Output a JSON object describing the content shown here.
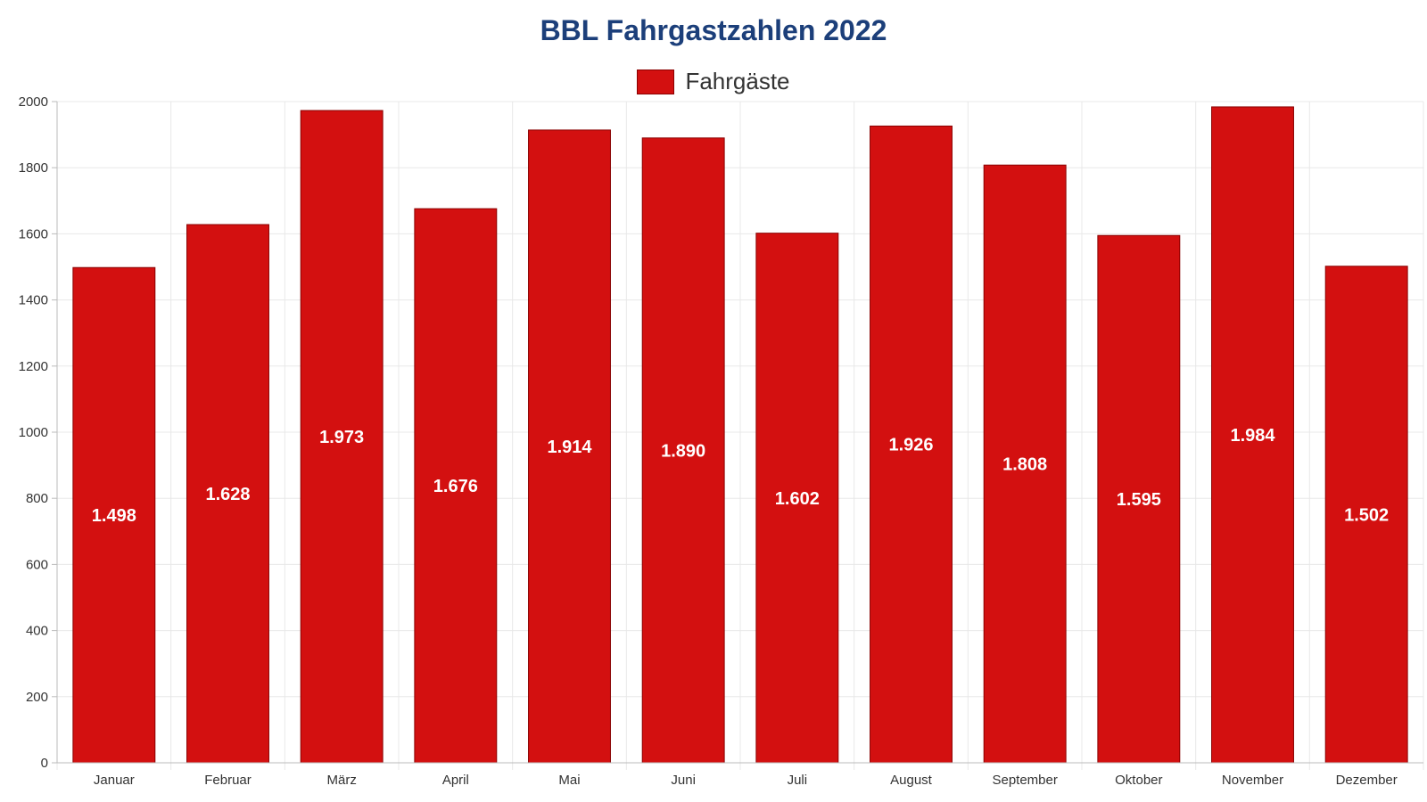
{
  "chart_data": {
    "type": "bar",
    "title": "BBL Fahrgastzahlen 2022",
    "xlabel": "",
    "ylabel": "",
    "categories": [
      "Januar",
      "Februar",
      "März",
      "April",
      "Mai",
      "Juni",
      "Juli",
      "August",
      "September",
      "Oktober",
      "November",
      "Dezember"
    ],
    "series": [
      {
        "name": "Fahrgäste",
        "values": [
          1498,
          1628,
          1973,
          1676,
          1914,
          1890,
          1602,
          1926,
          1808,
          1595,
          1984,
          1502
        ],
        "data_labels": [
          "1.498",
          "1.628",
          "1.973",
          "1.676",
          "1.914",
          "1.890",
          "1.602",
          "1.926",
          "1.808",
          "1.595",
          "1.984",
          "1.502"
        ],
        "color": "#d31010"
      }
    ],
    "ylim": [
      0,
      2000
    ],
    "yticks": [
      "0",
      "200",
      "400",
      "600",
      "800",
      "1000",
      "1200",
      "1400",
      "1600",
      "1800",
      "2000"
    ],
    "grid": true,
    "legend_position": "top-center"
  },
  "colors": {
    "title": "#1c3f7a",
    "bar": "#d31010",
    "bar_border": "#8a0000",
    "grid": "#e8e8e8",
    "axis": "#bbbbbb",
    "tick_text": "#333333",
    "data_label": "#ffffff"
  }
}
